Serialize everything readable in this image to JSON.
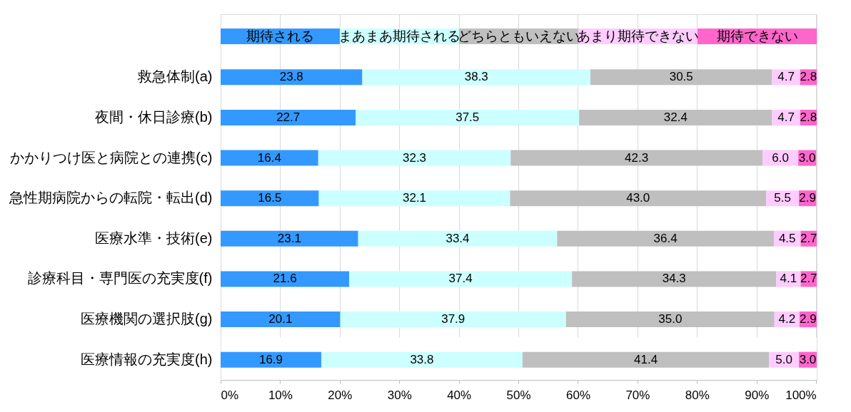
{
  "chart_data": {
    "type": "bar",
    "orientation": "horizontal",
    "stacked": true,
    "categories": [
      "救急体制(a)",
      "夜間・休日診療(b)",
      "かかりつけ医と病院との連携(c)",
      "急性期病院からの転院・転出(d)",
      "医療水準・技術(e)",
      "診療科目・専門医の充実度(f)",
      "医療機関の選択肢(g)",
      "医療情報の充実度(h)"
    ],
    "series": [
      {
        "name": "期待される",
        "color": "#3399ff",
        "values": [
          23.8,
          22.7,
          16.4,
          16.5,
          23.1,
          21.6,
          20.1,
          16.9
        ],
        "value_labels": [
          "23.8",
          "22.7",
          "16.4",
          "16.5",
          "23.1",
          "21.6",
          "20.1",
          "16.9"
        ]
      },
      {
        "name": "まあまあ期待される",
        "color": "#ccffff",
        "values": [
          38.3,
          37.5,
          32.3,
          32.1,
          33.4,
          37.4,
          37.9,
          33.8
        ],
        "value_labels": [
          "38.3",
          "37.5",
          "32.3",
          "32.1",
          "33.4",
          "37.4",
          "37.9",
          "33.8"
        ]
      },
      {
        "name": "どちらともいえない",
        "color": "#bfbfbf",
        "values": [
          30.5,
          32.4,
          42.3,
          43.0,
          36.4,
          34.3,
          35.0,
          41.4
        ],
        "value_labels": [
          "30.5",
          "32.4",
          "42.3",
          "43.0",
          "36.4",
          "34.3",
          "35.0",
          "41.4"
        ]
      },
      {
        "name": "あまり期待できない",
        "color": "#ffccff",
        "values": [
          4.7,
          4.7,
          6.0,
          5.5,
          4.5,
          4.1,
          4.2,
          5.0
        ],
        "value_labels": [
          "4.7",
          "4.7",
          "6.0",
          "5.5",
          "4.5",
          "4.1",
          "4.2",
          "5.0"
        ]
      },
      {
        "name": "期待できない",
        "color": "#ff66cc",
        "values": [
          2.8,
          2.8,
          3.0,
          2.9,
          2.7,
          2.7,
          2.9,
          3.0
        ],
        "value_labels": [
          "2.8",
          "2.8",
          "3.0",
          "2.9",
          "2.7",
          "2.7",
          "2.9",
          "3.0"
        ]
      }
    ],
    "xlim": [
      0,
      100.1
    ],
    "xticks": [
      {
        "value": 0,
        "label": "0%"
      },
      {
        "value": 10,
        "label": "10%"
      },
      {
        "value": 20,
        "label": "20%"
      },
      {
        "value": 30,
        "label": "30%"
      },
      {
        "value": 40,
        "label": "40%"
      },
      {
        "value": 50,
        "label": "50%"
      },
      {
        "value": 60,
        "label": "60%"
      },
      {
        "value": 70,
        "label": "70%"
      },
      {
        "value": 80,
        "label": "80%"
      },
      {
        "value": 90,
        "label": "90%"
      },
      {
        "value": 100,
        "label": "100%"
      }
    ],
    "grid": "x",
    "legend": "top"
  }
}
